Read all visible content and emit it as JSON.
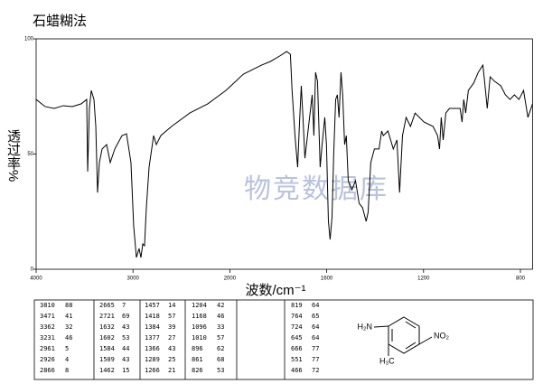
{
  "chart_data": {
    "type": "line",
    "title": "石蜡糊法",
    "xlabel": "波数/cm⁻¹",
    "ylabel": "透过率%",
    "watermark": "物竞数据库",
    "xlim": [
      4000,
      750
    ],
    "xticks": [
      4000,
      3000,
      2000,
      1600,
      1200,
      800
    ],
    "ylim": [
      0,
      100
    ],
    "yticks": [
      0,
      50,
      100
    ],
    "series": [
      {
        "color": "#000000",
        "x": [
          4000,
          3907,
          3813,
          3720,
          3627,
          3534,
          3478,
          3468,
          3450,
          3431,
          3403,
          3384,
          3366,
          3347,
          3319,
          3272,
          3235,
          3188,
          3114,
          3067,
          3021,
          2993,
          2965,
          2937,
          2918,
          2899,
          2881,
          2862,
          2834,
          2787,
          2759,
          2713,
          2601,
          2414,
          2228,
          2041,
          1944,
          1869,
          1832,
          1795,
          1765,
          1750,
          1743,
          1731,
          1720,
          1713,
          1705,
          1698,
          1690,
          1675,
          1660,
          1653,
          1646,
          1638,
          1627,
          1619,
          1608,
          1601,
          1593,
          1586,
          1578,
          1571,
          1563,
          1556,
          1549,
          1541,
          1534,
          1526,
          1519,
          1511,
          1496,
          1481,
          1466,
          1452,
          1437,
          1429,
          1418,
          1403,
          1384,
          1373,
          1366,
          1347,
          1325,
          1310,
          1299,
          1287,
          1272,
          1254,
          1235,
          1198,
          1161,
          1142,
          1134,
          1127,
          1119,
          1108,
          1093,
          1067,
          1049,
          1041,
          1034,
          1026,
          1015,
          993,
          974,
          955,
          948,
          937,
          925,
          907,
          881,
          862,
          843,
          825,
          806,
          787,
          769,
          750
        ],
        "values": [
          73.7,
          70.6,
          69.8,
          71.0,
          70.6,
          71.8,
          73.7,
          42.4,
          69.8,
          77.6,
          73.7,
          62.0,
          33.3,
          46.3,
          52.2,
          54.1,
          46.3,
          52.2,
          58.0,
          58.8,
          46.3,
          18.8,
          5.1,
          9.0,
          5.1,
          11.0,
          10.2,
          26.7,
          44.3,
          58.0,
          54.1,
          58.0,
          62.0,
          67.8,
          71.8,
          77.6,
          84.7,
          88.6,
          90.2,
          92.5,
          94.5,
          93.3,
          77.6,
          58.0,
          44.3,
          62.0,
          79.6,
          65.9,
          48.2,
          62.0,
          75.7,
          58.0,
          85.5,
          81.6,
          44.3,
          54.1,
          65.9,
          54.1,
          20.8,
          12.9,
          22.7,
          50.2,
          73.7,
          75.7,
          65.9,
          85.5,
          75.7,
          54.1,
          58.0,
          38.4,
          34.5,
          38.4,
          28.6,
          26.7,
          20.8,
          24.7,
          46.3,
          52.2,
          52.2,
          60.0,
          58.0,
          60.0,
          52.2,
          56.1,
          33.3,
          58.0,
          65.9,
          62.0,
          67.8,
          63.9,
          62.0,
          58.0,
          52.2,
          65.9,
          56.1,
          67.8,
          69.8,
          69.8,
          69.8,
          63.9,
          73.7,
          67.8,
          77.6,
          80.8,
          85.5,
          88.6,
          81.6,
          69.8,
          83.5,
          81.6,
          79.6,
          75.7,
          73.7,
          75.7,
          73.7,
          77.6,
          65.9,
          71.8
        ]
      }
    ]
  },
  "table": {
    "rows": [
      [
        3810,
        88,
        2665,
        7,
        1457,
        14,
        1204,
        42,
        819,
        64
      ],
      [
        3471,
        41,
        2721,
        69,
        1418,
        57,
        1168,
        46,
        764,
        65
      ],
      [
        3362,
        32,
        1632,
        43,
        1384,
        39,
        1096,
        33,
        724,
        64
      ],
      [
        3231,
        46,
        1602,
        53,
        1377,
        27,
        1010,
        57,
        645,
        64
      ],
      [
        2961,
        5,
        1584,
        44,
        1366,
        43,
        896,
        62,
        666,
        77
      ],
      [
        2926,
        4,
        1509,
        43,
        1289,
        25,
        861,
        68,
        551,
        77
      ],
      [
        2866,
        8,
        1462,
        15,
        1266,
        21,
        826,
        53,
        466,
        72
      ]
    ]
  },
  "structure": {
    "amine": "H₂N",
    "nitro": "NO₂",
    "methyl": "H₃C"
  }
}
